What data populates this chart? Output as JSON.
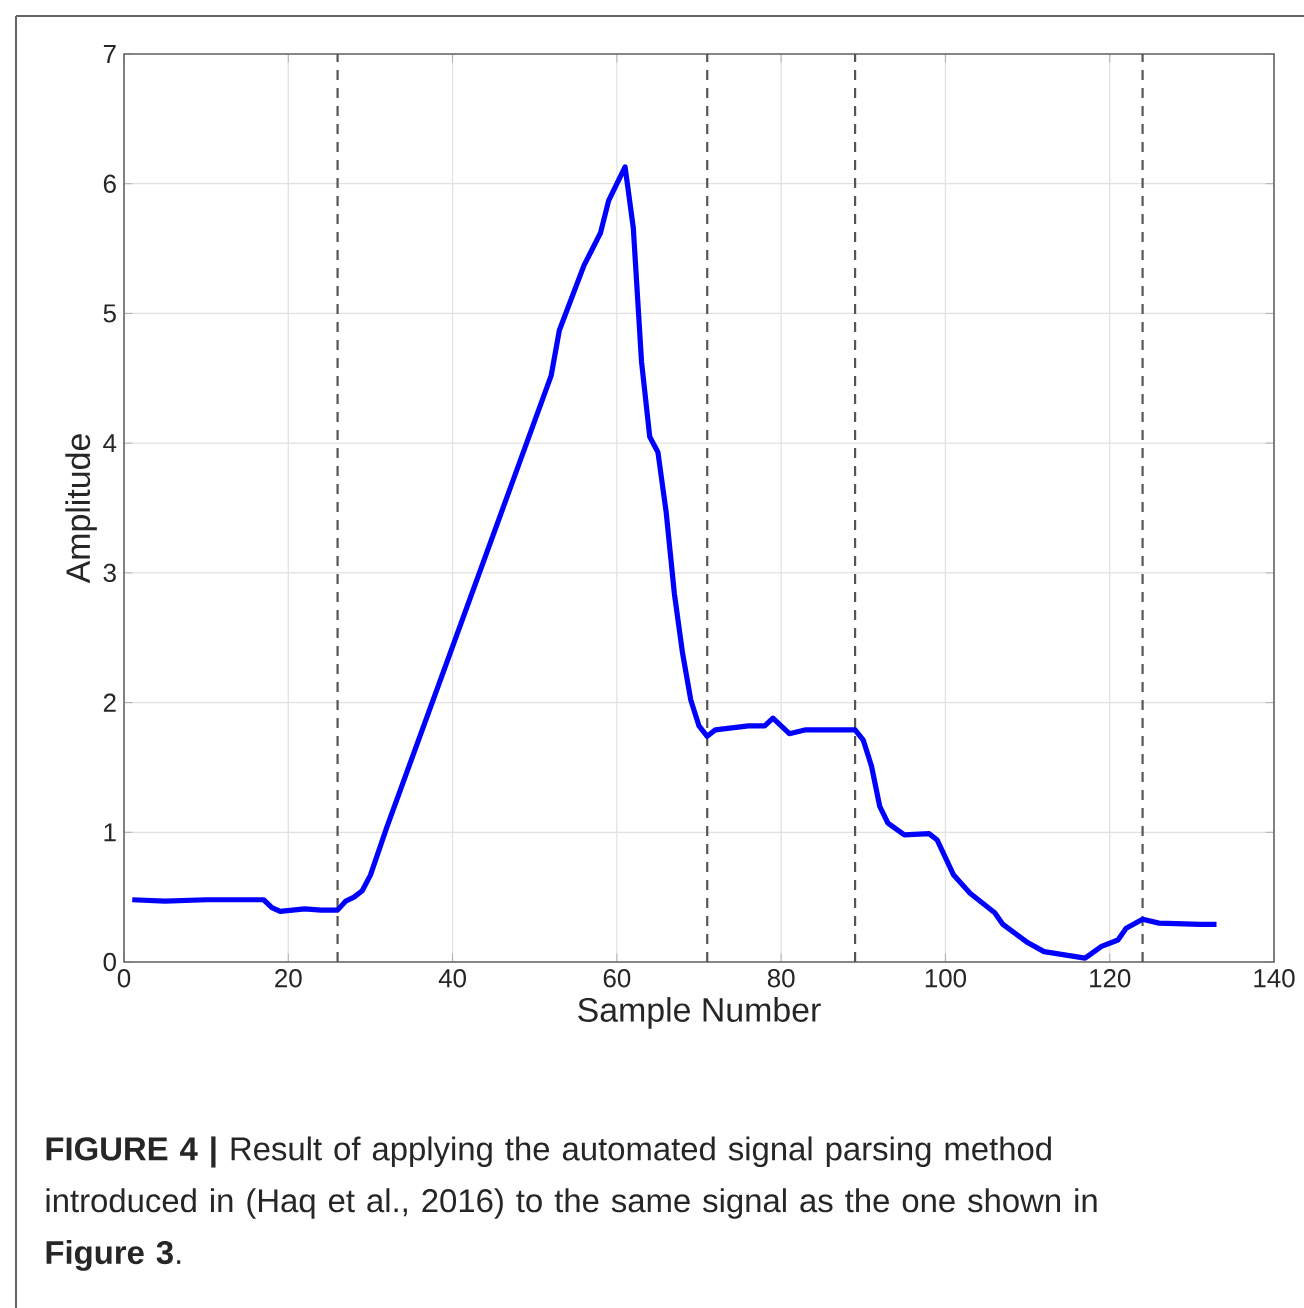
{
  "chart_data": {
    "type": "line",
    "xlabel": "Sample Number",
    "ylabel": "Amplitude",
    "x": [
      1,
      5,
      10,
      17,
      18,
      19,
      22,
      24,
      26,
      27,
      28,
      29,
      30,
      32,
      52,
      53,
      56,
      58,
      59,
      61,
      62,
      63,
      64,
      65,
      66,
      67,
      68,
      69,
      70,
      71,
      72,
      76,
      78,
      79,
      81,
      83,
      89,
      90,
      91,
      92,
      93,
      95,
      98,
      99,
      101,
      103,
      106,
      107,
      110,
      112,
      117,
      119,
      121,
      122,
      124,
      126,
      131,
      133
    ],
    "values": [
      0.48,
      0.47,
      0.48,
      0.48,
      0.42,
      0.39,
      0.41,
      0.4,
      0.4,
      0.47,
      0.5,
      0.55,
      0.67,
      1.04,
      4.52,
      4.87,
      5.37,
      5.62,
      5.87,
      6.13,
      5.66,
      4.63,
      4.05,
      3.93,
      3.47,
      2.84,
      2.38,
      2.02,
      1.82,
      1.74,
      1.79,
      1.82,
      1.82,
      1.88,
      1.76,
      1.79,
      1.79,
      1.71,
      1.51,
      1.2,
      1.07,
      0.98,
      0.99,
      0.94,
      0.67,
      0.53,
      0.38,
      0.29,
      0.15,
      0.08,
      0.03,
      0.12,
      0.17,
      0.26,
      0.33,
      0.3,
      0.29,
      0.29
    ],
    "color": "#0000ff",
    "line_style": "solid",
    "marker": "none",
    "xlim": [
      0,
      140
    ],
    "ylim": [
      0,
      7
    ],
    "xticks": [
      0,
      20,
      40,
      60,
      80,
      100,
      120,
      140
    ],
    "yticks": [
      0,
      1,
      2,
      3,
      4,
      5,
      6,
      7
    ],
    "grid": true,
    "ref_lines": [
      {
        "axis": "x",
        "value": 26,
        "color": "#555555",
        "line_style": "dashed"
      },
      {
        "axis": "x",
        "value": 71,
        "color": "#555555",
        "line_style": "dashed"
      },
      {
        "axis": "x",
        "value": 89,
        "color": "#555555",
        "line_style": "dashed"
      },
      {
        "axis": "x",
        "value": 124,
        "color": "#555555",
        "line_style": "dashed"
      }
    ],
    "annotations": [
      "**FIGURE 4 |** Result of applying the automated signal parsing method introduced in (Haq et al., 2016) to the same signal as the one shown in **Figure 3**."
    ]
  }
}
